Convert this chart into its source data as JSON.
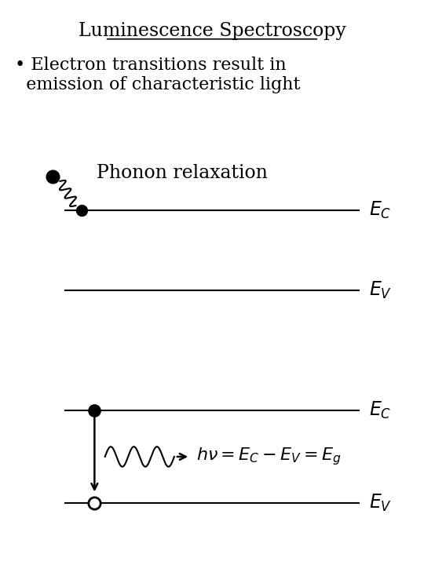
{
  "title": "Luminescence Spectroscopy",
  "bullet_text": "• Electron transitions result in\n  emission of characteristic light",
  "phonon_label": "Phonon relaxation",
  "bg_color": "#ffffff",
  "line_color": "#000000",
  "title_fontsize": 17,
  "body_fontsize": 16,
  "label_fontsize": 17,
  "xlim": [
    0,
    10
  ],
  "ylim": [
    0,
    14
  ],
  "ec_top_y": 8.8,
  "ev_top_y": 6.8,
  "ec_bot_y": 3.8,
  "ev_bot_y": 1.5,
  "line_x_start": 1.5,
  "line_x_end": 8.5,
  "dot_x_top": 1.9,
  "phonon_dot_x": 1.2,
  "dot_x_bot": 2.2,
  "wave_x_start": 2.45,
  "wave_x_end": 4.1,
  "n_wave_cycles": 3,
  "wave_amp": 0.25
}
